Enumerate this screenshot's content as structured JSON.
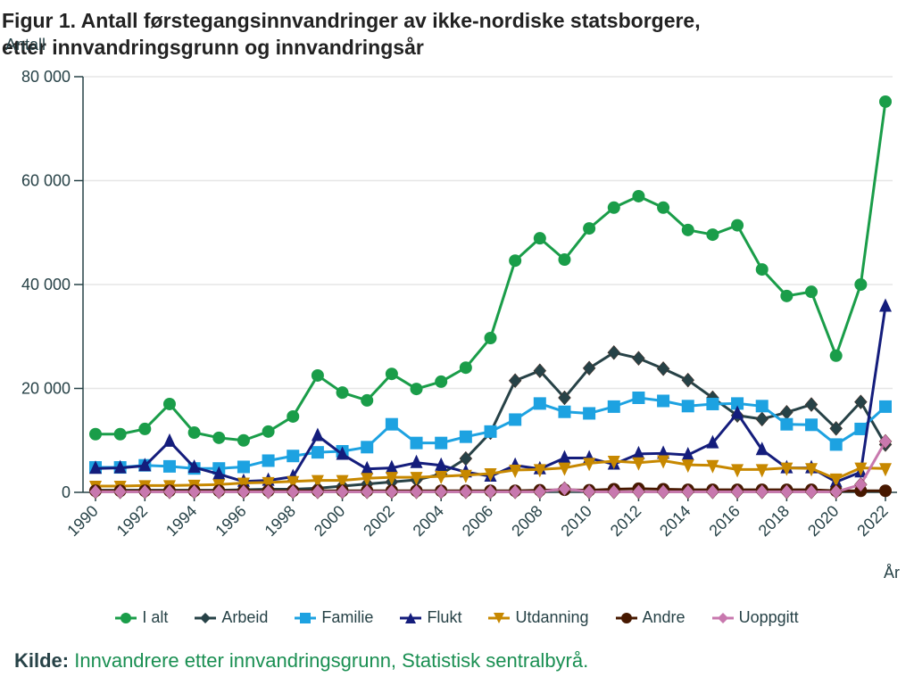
{
  "chart_data": {
    "type": "line",
    "title": "Figur 1. Antall førstegangsinnvandringer av ikke-nordiske statsborgere, etter innvandringsgrunn og innvandringsår",
    "xlabel": "År",
    "ylabel": "Antall",
    "ylim": [
      0,
      80000
    ],
    "yticks": [
      0,
      20000,
      40000,
      60000,
      80000
    ],
    "ytick_labels": [
      "0",
      "20 000",
      "40 000",
      "60 000",
      "80 000"
    ],
    "xlim": [
      1990,
      2022
    ],
    "xticks": [
      1990,
      1992,
      1994,
      1996,
      1998,
      2000,
      2002,
      2004,
      2006,
      2008,
      2010,
      2012,
      2014,
      2016,
      2018,
      2020,
      2022
    ],
    "grid": "horizontal",
    "legend": "bottom",
    "x": [
      1990,
      1991,
      1992,
      1993,
      1994,
      1995,
      1996,
      1997,
      1998,
      1999,
      2000,
      2001,
      2002,
      2003,
      2004,
      2005,
      2006,
      2007,
      2008,
      2009,
      2010,
      2011,
      2012,
      2013,
      2014,
      2015,
      2016,
      2017,
      2018,
      2019,
      2020,
      2021,
      2022
    ],
    "series": [
      {
        "name": "I alt",
        "color": "#1a9d49",
        "marker": "circle",
        "values": [
          11200,
          11200,
          12200,
          17000,
          11500,
          10500,
          10000,
          11700,
          14600,
          22500,
          19200,
          17700,
          22800,
          19900,
          21300,
          24000,
          29700,
          44600,
          48900,
          44800,
          50800,
          54800,
          57000,
          54800,
          50500,
          49600,
          51400,
          42900,
          37800,
          38600,
          26300,
          40000,
          75200
        ]
      },
      {
        "name": "Arbeid",
        "color": "#274247",
        "marker": "diamond",
        "values": [
          400,
          400,
          400,
          400,
          400,
          400,
          500,
          600,
          600,
          800,
          1200,
          1600,
          2000,
          2400,
          3500,
          6500,
          11500,
          21500,
          23400,
          18200,
          23900,
          26900,
          25800,
          23800,
          21600,
          18200,
          14800,
          14100,
          15400,
          16900,
          12300,
          17400,
          9200
        ]
      },
      {
        "name": "Familie",
        "color": "#1da2e1",
        "marker": "square",
        "values": [
          4800,
          4800,
          5200,
          5000,
          4600,
          4600,
          4900,
          6100,
          7000,
          7700,
          7900,
          8700,
          13100,
          9500,
          9500,
          10700,
          11700,
          14000,
          17100,
          15500,
          15200,
          16500,
          18200,
          17600,
          16600,
          17000,
          17100,
          16600,
          13100,
          13000,
          9200,
          12200,
          16500
        ]
      },
      {
        "name": "Flukt",
        "color": "#141d7c",
        "marker": "triangle-up",
        "values": [
          4600,
          4700,
          5100,
          9800,
          4800,
          3500,
          2100,
          2300,
          3000,
          10900,
          7300,
          4500,
          4700,
          5700,
          5200,
          3900,
          3100,
          5200,
          4500,
          6600,
          6600,
          5400,
          7400,
          7500,
          7200,
          9500,
          15200,
          8200,
          4700,
          4700,
          2000,
          3900,
          35800
        ]
      },
      {
        "name": "Utdanning",
        "color": "#c78800",
        "marker": "triangle-down",
        "values": [
          1200,
          1200,
          1300,
          1300,
          1400,
          1500,
          1800,
          1900,
          2100,
          2300,
          2300,
          2700,
          2900,
          2900,
          3100,
          3300,
          3600,
          4300,
          4400,
          4700,
          5600,
          6000,
          5700,
          6100,
          5300,
          5200,
          4400,
          4400,
          4700,
          4600,
          2600,
          4700,
          4600
        ]
      },
      {
        "name": "Andre",
        "color": "#471800",
        "marker": "circle",
        "values": [
          300,
          300,
          300,
          300,
          300,
          300,
          300,
          300,
          300,
          300,
          300,
          300,
          300,
          300,
          300,
          300,
          300,
          300,
          400,
          500,
          400,
          600,
          700,
          600,
          500,
          500,
          500,
          500,
          500,
          500,
          300,
          300,
          300
        ]
      },
      {
        "name": "Uoppgitt",
        "color": "#c878ae",
        "marker": "diamond",
        "values": [
          100,
          100,
          100,
          100,
          100,
          100,
          100,
          100,
          100,
          100,
          100,
          100,
          100,
          100,
          100,
          100,
          100,
          100,
          100,
          700,
          100,
          100,
          100,
          100,
          100,
          100,
          100,
          100,
          100,
          100,
          100,
          1500,
          9800
        ]
      }
    ]
  },
  "ylabel": "Antall",
  "xlabel": "År",
  "source": {
    "label": "Kilde:",
    "text": "Innvandrere etter innvandringsgrunn, Statistisk sentralbyrå."
  }
}
